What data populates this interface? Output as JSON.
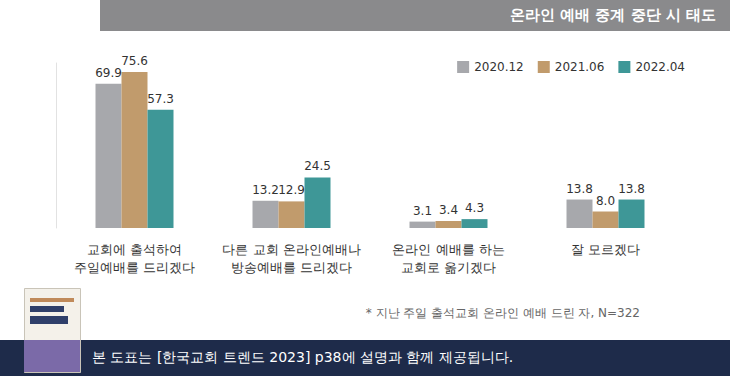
{
  "chart_data": {
    "type": "bar",
    "title": "온라인 예배 중계 중단 시 태도",
    "categories": [
      "교회에 출석하여\n주일예배를 드리겠다",
      "다른 교회 온라인예배나\n방송예배를 드리겠다",
      "온라인 예배를 하는\n교회로 옮기겠다",
      "잘 모르겠다"
    ],
    "series": [
      {
        "name": "2020.12",
        "color": "#a7a8ac",
        "values": [
          69.9,
          13.2,
          3.1,
          13.8
        ],
        "value_labels": [
          "69.9",
          "13.2",
          "3.1",
          "13.8"
        ]
      },
      {
        "name": "2021.06",
        "color": "#c19b6c",
        "values": [
          75.6,
          12.9,
          3.4,
          8.0
        ],
        "value_labels": [
          "75.6",
          "12.9",
          "3.4",
          "8.0"
        ]
      },
      {
        "name": "2022.04",
        "color": "#3e9797",
        "values": [
          57.3,
          24.5,
          4.3,
          13.8
        ],
        "value_labels": [
          "57.3",
          "24.5",
          "4.3",
          "13.8"
        ]
      }
    ],
    "ylim": [
      0,
      80
    ],
    "tick_labels": "x",
    "grid": false,
    "legend": "top-right",
    "data_labels": true,
    "note": "* 지난 주일 출석교회 온라인 예배 드린 자, N=322",
    "source": "본 도표는 [한국교회 트렌드 2023] p38에 설명과 함께 제공됩니다."
  }
}
